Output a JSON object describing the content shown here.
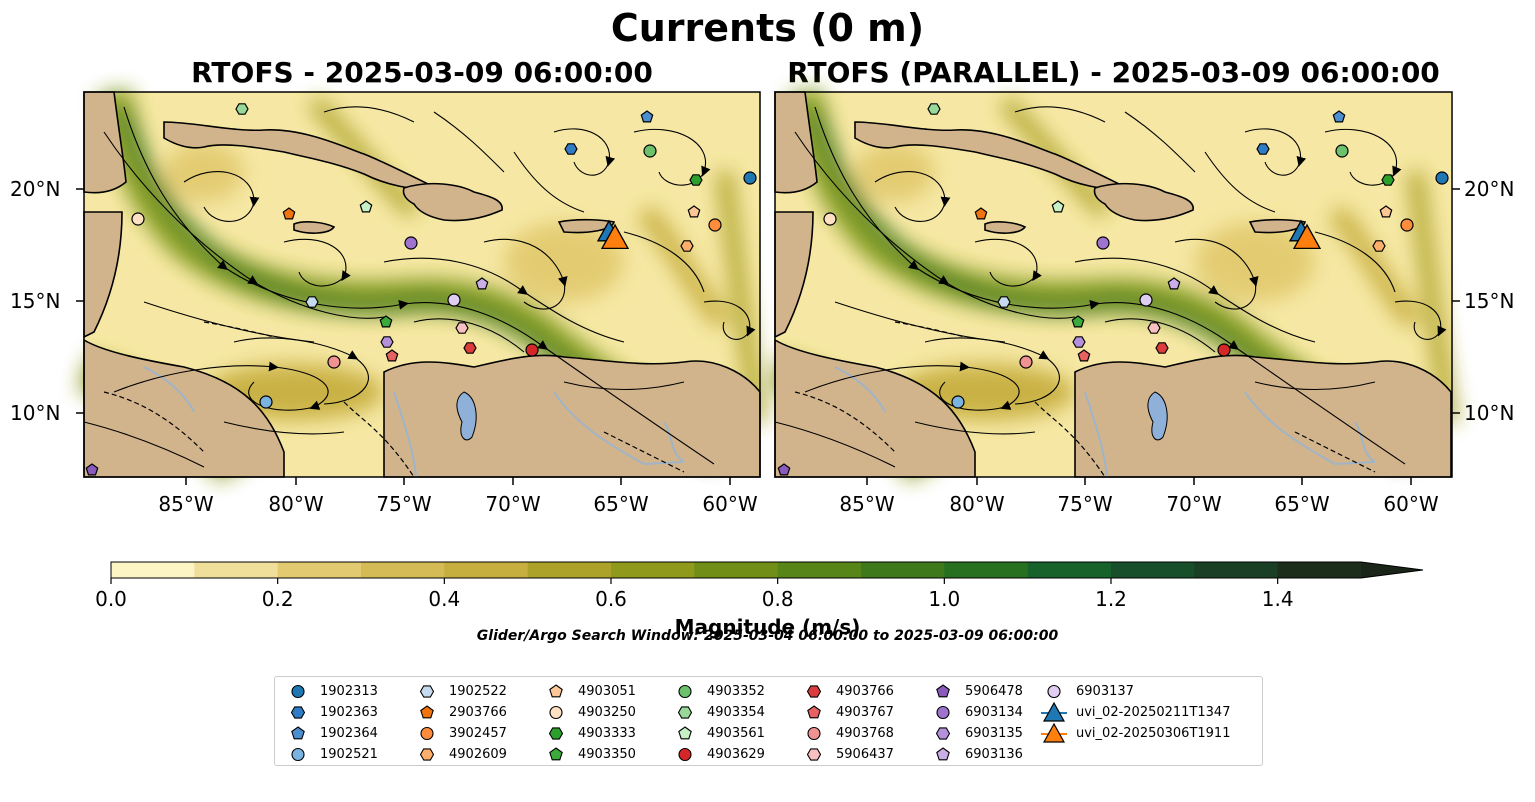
{
  "title": "Currents (0 m)",
  "panels": [
    {
      "title": "RTOFS - 2025-03-09 06:00:00"
    },
    {
      "title": "RTOFS (PARALLEL) - 2025-03-09 06:00:00"
    }
  ],
  "map": {
    "lon_labels": [
      "85°W",
      "80°W",
      "75°W",
      "70°W",
      "65°W",
      "60°W"
    ],
    "lat_labels": [
      "20°N",
      "15°N",
      "10°N"
    ],
    "colors": {
      "land": "#d2b48c",
      "lake": "#8fb1d9",
      "river": "#9fb4c8",
      "coast": "#000000"
    }
  },
  "colorbar": {
    "label": "Magnitude (m/s)",
    "ticks": [
      "0.0",
      "0.2",
      "0.4",
      "0.6",
      "0.8",
      "1.0",
      "1.2",
      "1.4"
    ],
    "range": [
      0,
      1.5
    ],
    "extend": "max",
    "colors": [
      "#fdf5c4",
      "#efdf9a",
      "#e2ca70",
      "#d5bb55",
      "#c7af3f",
      "#aca22a",
      "#8f991b",
      "#718f17",
      "#578518",
      "#3e7a1c",
      "#27701f",
      "#17612b",
      "#174f2a",
      "#1b3f24",
      "#1c2d1c"
    ]
  },
  "search_window": "Glider/Argo Search Window: 2025-03-04 06:00:00 to 2025-03-09 06:00:00",
  "legend": [
    {
      "label": "1902313",
      "marker": "circle",
      "color": "#1f77b4"
    },
    {
      "label": "1902363",
      "marker": "hexagon",
      "color": "#2f7cc4"
    },
    {
      "label": "1902364",
      "marker": "pentagon",
      "color": "#4c8fd1"
    },
    {
      "label": "1902521",
      "marker": "circle",
      "color": "#7ab3e0"
    },
    {
      "label": "1902522",
      "marker": "hexagon",
      "color": "#c6dbef"
    },
    {
      "label": "2903766",
      "marker": "pentagon",
      "color": "#f0750f"
    },
    {
      "label": "3902457",
      "marker": "circle",
      "color": "#fd8d3c"
    },
    {
      "label": "4902609",
      "marker": "hexagon",
      "color": "#fdae6b"
    },
    {
      "label": "4903051",
      "marker": "pentagon",
      "color": "#fdc896"
    },
    {
      "label": "4903250",
      "marker": "circle",
      "color": "#fee0c2"
    },
    {
      "label": "4903333",
      "marker": "hexagon",
      "color": "#2ca02c"
    },
    {
      "label": "4903350",
      "marker": "pentagon",
      "color": "#3aaa3a"
    },
    {
      "label": "4903352",
      "marker": "circle",
      "color": "#6cc26c"
    },
    {
      "label": "4903354",
      "marker": "hexagon",
      "color": "#98d898"
    },
    {
      "label": "4903561",
      "marker": "pentagon",
      "color": "#c7f0c7"
    },
    {
      "label": "4903629",
      "marker": "circle",
      "color": "#d62728"
    },
    {
      "label": "4903766",
      "marker": "hexagon",
      "color": "#dc3c3c"
    },
    {
      "label": "4903767",
      "marker": "pentagon",
      "color": "#e66262"
    },
    {
      "label": "4903768",
      "marker": "circle",
      "color": "#f09292"
    },
    {
      "label": "5906437",
      "marker": "hexagon",
      "color": "#f8c0c0"
    },
    {
      "label": "5906478",
      "marker": "pentagon",
      "color": "#8a5bbd"
    },
    {
      "label": "6903134",
      "marker": "circle",
      "color": "#9f74cf"
    },
    {
      "label": "6903135",
      "marker": "hexagon",
      "color": "#b591dc"
    },
    {
      "label": "6903136",
      "marker": "pentagon",
      "color": "#caaee8"
    },
    {
      "label": "6903137",
      "marker": "circle",
      "color": "#e0cdf2"
    },
    {
      "label": "uvi_02-20250211T1347",
      "marker": "triangle-line",
      "color": "#1f77b4"
    },
    {
      "label": "uvi_02-20250306T1911",
      "marker": "triangle-line",
      "color": "#ff7f0e"
    }
  ]
}
